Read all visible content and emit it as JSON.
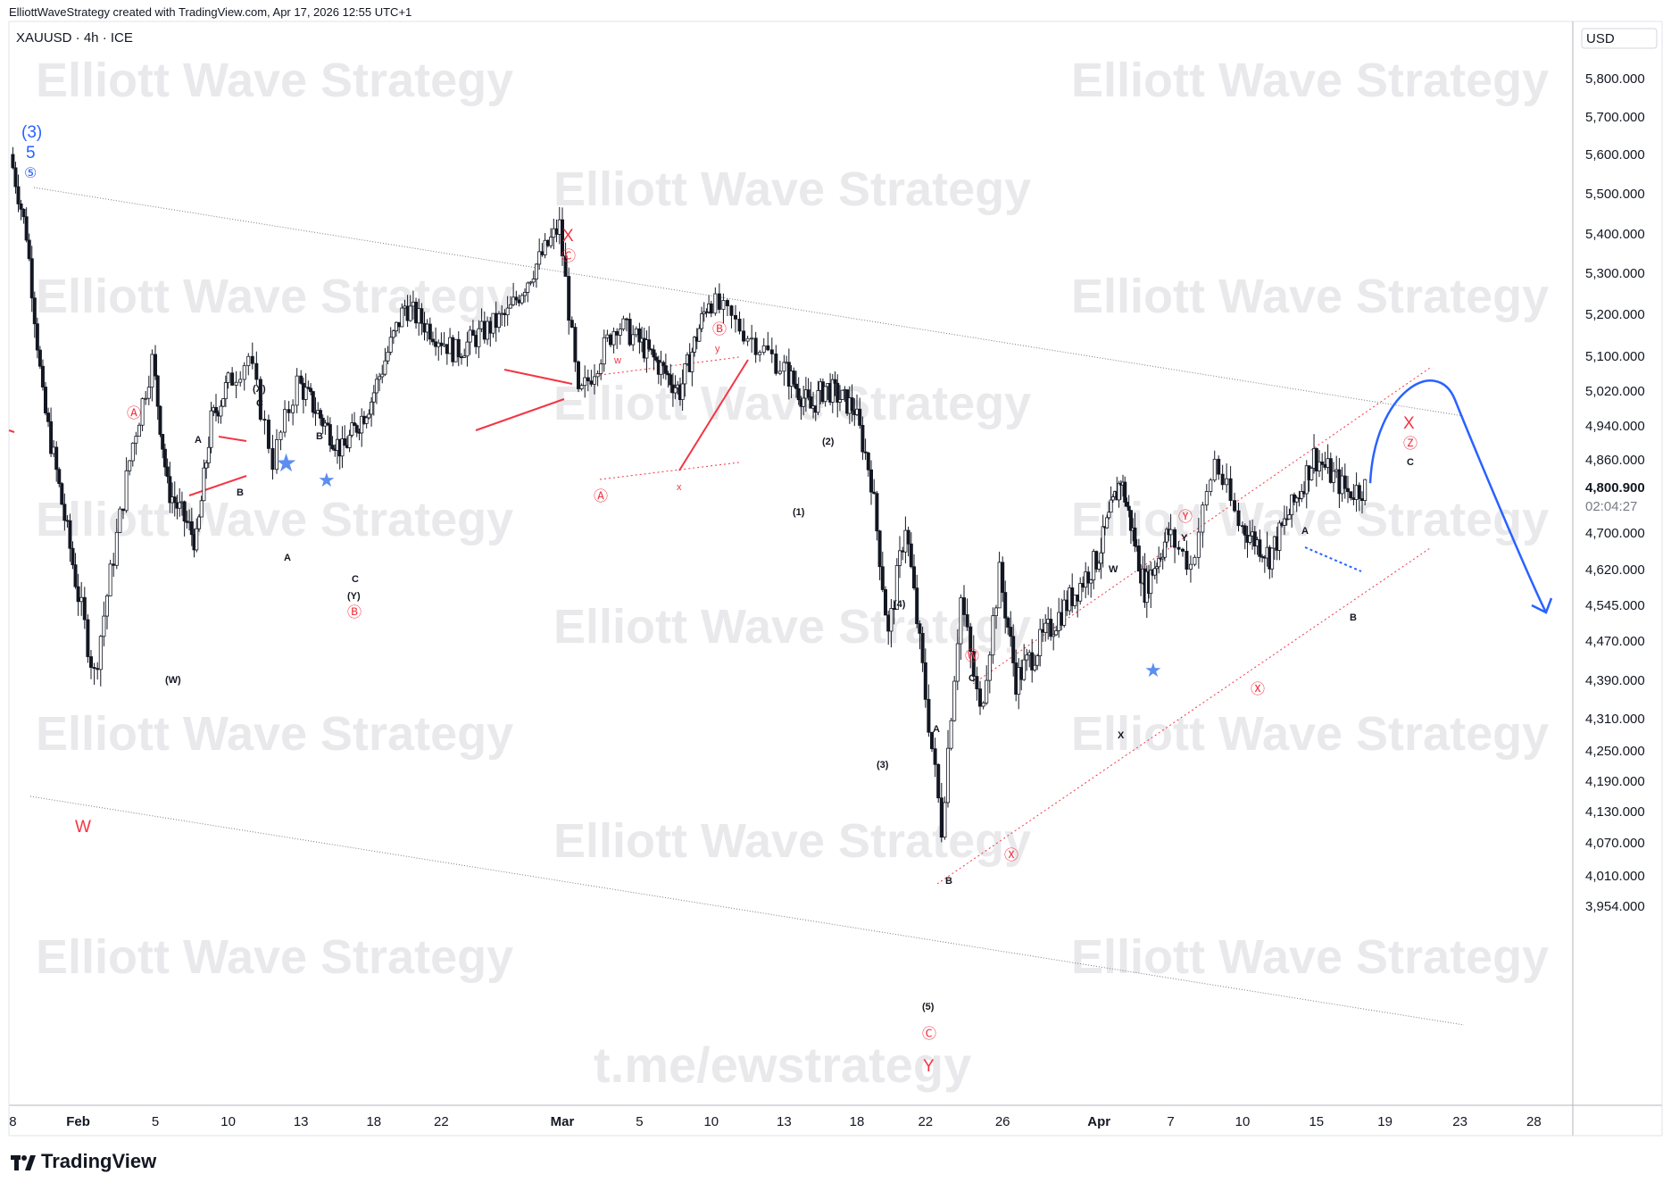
{
  "header": {
    "credit": "ElliottWaveStrategy created with TradingView.com, Apr 17, 2026 12:55 UTC+1",
    "symbol": "XAUUSD · 4h · ICE"
  },
  "price_axis": {
    "currency": "USD",
    "ticks": [
      "5,800.000",
      "5,700.000",
      "5,600.000",
      "5,500.000",
      "5,400.000",
      "5,300.000",
      "5,200.000",
      "5,100.000",
      "5,020.000",
      "4,940.000",
      "4,860.000",
      "4,800.900",
      "4,700.000",
      "4,620.000",
      "4,545.000",
      "4,470.000",
      "4,390.000",
      "4,310.000",
      "4,250.000",
      "4,190.000",
      "4,130.000",
      "4,070.000",
      "4,010.000",
      "3,954.000"
    ],
    "current_price": "4,800.900",
    "countdown": "02:04:27"
  },
  "time_axis": {
    "ticks": [
      "8",
      "Feb",
      "5",
      "10",
      "13",
      "18",
      "22",
      "Mar",
      "5",
      "10",
      "13",
      "18",
      "22",
      "26",
      "Apr",
      "7",
      "10",
      "15",
      "19",
      "23",
      "28"
    ]
  },
  "watermarks": {
    "brand": "Elliott Wave Strategy",
    "channel": "t.me/ewstrategy"
  },
  "footer": {
    "logo_text": "TradingView"
  },
  "colors": {
    "bull": "#ffffff",
    "bear": "#131722",
    "wave_red": "#f23645",
    "wave_blue": "#2962ff",
    "channel_grey": "#787b86"
  },
  "labels": {
    "w3": "(3)",
    "w5": "5",
    "c5": "⑤",
    "W": "W",
    "X": "X",
    "Y": "Y",
    "Xr": "X",
    "cA": "Ⓐ",
    "cB": "Ⓑ",
    "cC": "Ⓒ",
    "cW": "Ⓦ",
    "cX": "Ⓧ",
    "cY": "Ⓨ",
    "cZ": "Ⓩ",
    "pW": "(W)",
    "pX": "(X)",
    "pY": "(Y)",
    "p1": "(1)",
    "p2": "(2)",
    "p3": "(3)",
    "p4": "(4)",
    "p5": "(5)",
    "A": "A",
    "B": "B",
    "C": "C",
    "w": "w",
    "x": "x",
    "y": "y",
    "Wb": "W",
    "Xb": "X",
    "Yb": "Y"
  },
  "chart_data": {
    "type": "candlestick",
    "symbol": "XAUUSD",
    "interval": "4h",
    "exchange": "ICE",
    "currency": "USD",
    "ylim": [
      3930,
      5900
    ],
    "x_ticks": [
      "8",
      "Feb",
      "5",
      "10",
      "13",
      "18",
      "22",
      "Mar",
      "5",
      "10",
      "13",
      "18",
      "22",
      "26",
      "Apr",
      "7",
      "10",
      "15",
      "19",
      "23",
      "28"
    ],
    "series": [
      {
        "name": "XAUUSD",
        "swing_points": [
          {
            "date": "Jan 28",
            "price": 5600
          },
          {
            "date": "Jan 29",
            "price": 5400
          },
          {
            "date": "Jan 30",
            "price": 5000
          },
          {
            "date": "Feb 2",
            "price": 4400
          },
          {
            "date": "Feb 4",
            "price": 4900
          },
          {
            "date": "Feb 5",
            "price": 5090
          },
          {
            "date": "Feb 6",
            "price": 4800
          },
          {
            "date": "Feb 8",
            "price": 4680
          },
          {
            "date": "Feb 9",
            "price": 4950
          },
          {
            "date": "Feb 11",
            "price": 5100
          },
          {
            "date": "Feb 12",
            "price": 4860
          },
          {
            "date": "Feb 13",
            "price": 5040
          },
          {
            "date": "Feb 16",
            "price": 4880
          },
          {
            "date": "Feb 18",
            "price": 5000
          },
          {
            "date": "Feb 20",
            "price": 5220
          },
          {
            "date": "Feb 23",
            "price": 5110
          },
          {
            "date": "Feb 26",
            "price": 5200
          },
          {
            "date": "Mar 1",
            "price": 5420
          },
          {
            "date": "Mar 2",
            "price": 5000
          },
          {
            "date": "Mar 4",
            "price": 5180
          },
          {
            "date": "Mar 8",
            "price": 5020
          },
          {
            "date": "Mar 10",
            "price": 5240
          },
          {
            "date": "Mar 13",
            "price": 5080
          },
          {
            "date": "Mar 15",
            "price": 4980
          },
          {
            "date": "Mar 16",
            "price": 5030
          },
          {
            "date": "Mar 18",
            "price": 4980
          },
          {
            "date": "Mar 19",
            "price": 4820
          },
          {
            "date": "Mar 20",
            "price": 4480
          },
          {
            "date": "Mar 21",
            "price": 4720
          },
          {
            "date": "Mar 23",
            "price": 4100
          },
          {
            "date": "Mar 24",
            "price": 4560
          },
          {
            "date": "Mar 25",
            "price": 4320
          },
          {
            "date": "Mar 26",
            "price": 4610
          },
          {
            "date": "Mar 27",
            "price": 4390
          },
          {
            "date": "Apr 1",
            "price": 4640
          },
          {
            "date": "Apr 3",
            "price": 4820
          },
          {
            "date": "Apr 5",
            "price": 4580
          },
          {
            "date": "Apr 7",
            "price": 4700
          },
          {
            "date": "Apr 8",
            "price": 4630
          },
          {
            "date": "Apr 9",
            "price": 4860
          },
          {
            "date": "Apr 10",
            "price": 4720
          },
          {
            "date": "Apr 12",
            "price": 4650
          },
          {
            "date": "Apr 14",
            "price": 4790
          },
          {
            "date": "Apr 15",
            "price": 4870
          },
          {
            "date": "Apr 17",
            "price": 4790
          },
          {
            "date": "Apr 18",
            "price": 4801
          }
        ]
      }
    ],
    "projection": {
      "from_price": 4810,
      "peak_price": 5000,
      "end_price": 4530,
      "label_peak": "c",
      "label_end": ""
    },
    "grid": false,
    "legend": "none"
  }
}
